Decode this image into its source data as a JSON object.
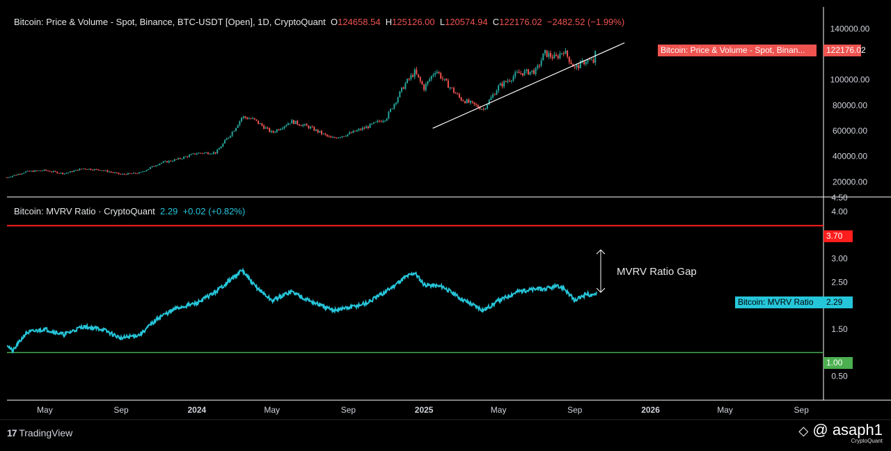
{
  "top_panel": {
    "title": "Bitcoin: Price & Volume - Spot, Binance, BTC-USDT [Open], 1D, CryptoQuant",
    "open_label": "O",
    "open": "124658.54",
    "high_label": "H",
    "high": "125126.00",
    "low_label": "L",
    "low": "120574.94",
    "close_label": "C",
    "close": "122176.02",
    "change": "−2482.52 (−1.99%)",
    "series_tag": "Bitcoin: Price & Volume - Spot, Binan...",
    "last_value": "122176.02",
    "y_ticks": [
      "140000.00",
      "100000.00",
      "80000.00",
      "60000.00",
      "40000.00",
      "20000.00"
    ]
  },
  "bottom_panel": {
    "title": "Bitcoin: MVRV Ratio · CryptoQuant",
    "value": "2.29",
    "change": "+0.02 (+0.82%)",
    "series_tag": "Bitcoin: MVRV Ratio",
    "last_value": "2.29",
    "upper_line_label": "3.70",
    "lower_line_label": "1.00",
    "annotation": "MVRV Ratio Gap",
    "y_ticks": [
      "4.50",
      "4.00",
      "3.50",
      "3.00",
      "2.50",
      "2.00",
      "1.50",
      "0.50"
    ]
  },
  "x_ticks": [
    "May",
    "Sep",
    "2024",
    "May",
    "Sep",
    "2025",
    "May",
    "Sep",
    "2026",
    "May",
    "Sep"
  ],
  "footer": {
    "brand": "TradingView",
    "author": "@ asaph1",
    "author_sub": "CryptoQuant"
  },
  "colors": {
    "background": "#000000",
    "up": "#26a69a",
    "down": "#ef5350",
    "mvrv": "#26c6da",
    "upper_band": "#ff1e1e",
    "lower_band": "#4caf50",
    "trendline": "#ffffff"
  },
  "chart_data": [
    {
      "type": "line",
      "title": "Bitcoin: Price & Volume - Spot, Binance, BTC-USDT [Open], 1D, CryptoQuant",
      "xlabel": "",
      "ylabel": "",
      "ylim": [
        10000,
        150000
      ],
      "x": [
        "2023-03-01",
        "2023-04-01",
        "2023-05-01",
        "2023-06-01",
        "2023-07-01",
        "2023-08-01",
        "2023-09-01",
        "2023-10-01",
        "2023-11-01",
        "2023-12-01",
        "2024-01-01",
        "2024-02-01",
        "2024-03-01",
        "2024-03-14",
        "2024-04-01",
        "2024-05-01",
        "2024-06-01",
        "2024-07-01",
        "2024-08-05",
        "2024-09-01",
        "2024-10-01",
        "2024-11-01",
        "2024-12-01",
        "2024-12-17",
        "2025-01-01",
        "2025-01-20",
        "2025-02-01",
        "2025-03-01",
        "2025-04-07",
        "2025-05-01",
        "2025-06-01",
        "2025-07-01",
        "2025-07-14",
        "2025-08-01",
        "2025-08-14",
        "2025-09-01",
        "2025-09-20",
        "2025-10-01",
        "2025-10-06"
      ],
      "series": [
        {
          "values": [
            23500,
            28000,
            29000,
            26500,
            30500,
            29200,
            25900,
            27000,
            34500,
            37700,
            42500,
            43000,
            61000,
            71000,
            69000,
            58500,
            67500,
            62700,
            54000,
            57500,
            63000,
            70000,
            96500,
            106000,
            93500,
            108000,
            100000,
            85000,
            77000,
            94500,
            105000,
            107000,
            121000,
            117000,
            123000,
            109000,
            115500,
            114000,
            124658
          ]
        }
      ],
      "trendline": [
        [
          "2025-01-15",
          62000
        ],
        [
          "2025-11-20",
          129000
        ]
      ],
      "last_value": 122176.02
    },
    {
      "type": "line",
      "title": "Bitcoin: MVRV Ratio · CryptoQuant",
      "xlabel": "",
      "ylabel": "",
      "ylim": [
        0.25,
        4.5
      ],
      "x": [
        "2023-03-01",
        "2023-03-10",
        "2023-04-01",
        "2023-05-01",
        "2023-06-01",
        "2023-07-01",
        "2023-08-01",
        "2023-09-01",
        "2023-10-01",
        "2023-11-01",
        "2023-12-01",
        "2024-01-01",
        "2024-02-01",
        "2024-03-14",
        "2024-04-01",
        "2024-05-01",
        "2024-06-01",
        "2024-07-01",
        "2024-08-05",
        "2024-09-01",
        "2024-10-01",
        "2024-11-01",
        "2024-12-01",
        "2024-12-17",
        "2025-01-01",
        "2025-02-01",
        "2025-03-01",
        "2025-04-07",
        "2025-05-01",
        "2025-06-01",
        "2025-07-01",
        "2025-07-14",
        "2025-08-01",
        "2025-08-14",
        "2025-09-01",
        "2025-09-20",
        "2025-10-01",
        "2025-10-06"
      ],
      "series": [
        {
          "name": "Bitcoin: MVRV Ratio",
          "values": [
            1.18,
            1.02,
            1.42,
            1.5,
            1.38,
            1.55,
            1.5,
            1.3,
            1.38,
            1.75,
            1.95,
            2.05,
            2.3,
            2.75,
            2.45,
            2.1,
            2.3,
            2.1,
            1.9,
            1.95,
            2.05,
            2.3,
            2.6,
            2.7,
            2.45,
            2.4,
            2.15,
            1.9,
            2.1,
            2.3,
            2.35,
            2.35,
            2.4,
            2.38,
            2.1,
            2.25,
            2.2,
            2.29
          ]
        }
      ],
      "hlines": [
        3.7,
        1.0
      ],
      "last_value": 2.29
    }
  ]
}
